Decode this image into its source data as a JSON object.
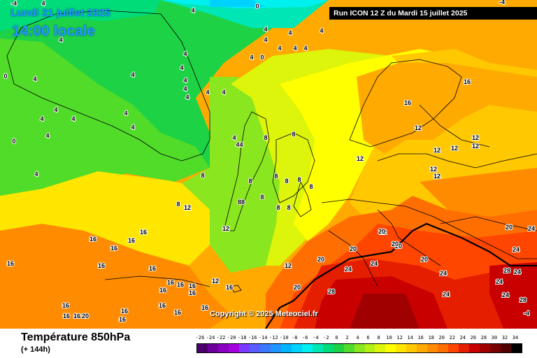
{
  "header": {
    "date": "Lundi 21 juillet 2025",
    "time": "14:00 locale",
    "run": "Run ICON 12 Z du Mardi 15 juillet 2025"
  },
  "footer": {
    "title": "Température 850hPa",
    "subtitle": "(+ 144h)",
    "copyright": "Copyright © 2025 Meteociel.fr"
  },
  "legend": {
    "labels": [
      "-26",
      "-24",
      "-22",
      "-20",
      "-18",
      "-16",
      "-14",
      "-12",
      "-10",
      "-8",
      "-6",
      "-4",
      "-2",
      "0",
      "2",
      "4",
      "6",
      "8",
      "10",
      "12",
      "14",
      "16",
      "18",
      "20",
      "22",
      "24",
      "26",
      "28",
      "30",
      "32",
      "34"
    ],
    "colors": [
      "#4b006e",
      "#6b009b",
      "#8a00c0",
      "#a400e0",
      "#7a3aff",
      "#5a5aff",
      "#3a78ff",
      "#1e96ff",
      "#00b4ff",
      "#00d2ff",
      "#00f0f0",
      "#00e6b4",
      "#00dc78",
      "#1ed246",
      "#50dc28",
      "#8ae61e",
      "#b4f014",
      "#dcf50a",
      "#ffff00",
      "#ffe600",
      "#ffc800",
      "#ffaa00",
      "#ff8c00",
      "#ff6e00",
      "#ff4600",
      "#e61e00",
      "#c80000",
      "#a00000",
      "#780000",
      "#500000",
      "#000000"
    ]
  },
  "isotherm_labels": [
    {
      "text": "-4"
    },
    {
      "text": "4"
    },
    {
      "text": "4"
    },
    {
      "text": "0"
    },
    {
      "text": "4"
    },
    {
      "text": "4"
    },
    {
      "text": "4"
    },
    {
      "text": "4"
    },
    {
      "text": "4"
    },
    {
      "text": "4"
    },
    {
      "text": "4"
    },
    {
      "text": "4"
    },
    {
      "text": "4"
    },
    {
      "text": "4"
    },
    {
      "text": "4"
    },
    {
      "text": "4"
    },
    {
      "text": "4"
    },
    {
      "text": "4"
    },
    {
      "text": "4"
    },
    {
      "text": "4"
    },
    {
      "text": "4"
    },
    {
      "text": "4"
    },
    {
      "text": "0"
    },
    {
      "text": "0"
    },
    {
      "text": "4"
    },
    {
      "text": "4"
    },
    {
      "text": "4"
    },
    {
      "text": "4"
    },
    {
      "text": "4"
    },
    {
      "text": "4"
    },
    {
      "text": "4"
    },
    {
      "text": "4"
    },
    {
      "text": "4"
    },
    {
      "text": "8"
    },
    {
      "text": "8"
    },
    {
      "text": "8"
    },
    {
      "text": "8"
    },
    {
      "text": "8"
    },
    {
      "text": "8"
    },
    {
      "text": "8"
    },
    {
      "text": "8"
    },
    {
      "text": "88"
    },
    {
      "text": "8"
    },
    {
      "text": "8"
    },
    {
      "text": "8"
    },
    {
      "text": "8"
    },
    {
      "text": "12"
    },
    {
      "text": "12"
    },
    {
      "text": "12"
    },
    {
      "text": "12"
    },
    {
      "text": "12"
    },
    {
      "text": "12"
    },
    {
      "text": "12"
    },
    {
      "text": "12"
    },
    {
      "text": "12"
    },
    {
      "text": "12"
    },
    {
      "text": "12"
    },
    {
      "text": "12"
    },
    {
      "text": "12"
    },
    {
      "text": "16"
    },
    {
      "text": "16"
    },
    {
      "text": "16"
    },
    {
      "text": "16"
    },
    {
      "text": "16"
    },
    {
      "text": "16"
    },
    {
      "text": "16"
    },
    {
      "text": "16"
    },
    {
      "text": "16"
    },
    {
      "text": "16"
    },
    {
      "text": "16"
    },
    {
      "text": "16"
    },
    {
      "text": "16"
    },
    {
      "text": "16"
    },
    {
      "text": "16"
    },
    {
      "text": "16"
    },
    {
      "text": "16"
    },
    {
      "text": "16"
    },
    {
      "text": "16"
    },
    {
      "text": "16"
    },
    {
      "text": "16"
    },
    {
      "text": "16"
    },
    {
      "text": "16"
    },
    {
      "text": "20"
    },
    {
      "text": "20"
    },
    {
      "text": "20"
    },
    {
      "text": "20"
    },
    {
      "text": "20"
    },
    {
      "text": "20"
    },
    {
      "text": "20"
    },
    {
      "text": "20"
    },
    {
      "text": "20"
    },
    {
      "text": "24"
    },
    {
      "text": "24"
    },
    {
      "text": "24"
    },
    {
      "text": "24"
    },
    {
      "text": "24"
    },
    {
      "text": "24"
    },
    {
      "text": "24"
    },
    {
      "text": "24"
    },
    {
      "text": "24"
    },
    {
      "text": "28"
    },
    {
      "text": "28"
    },
    {
      "text": "28"
    },
    {
      "text": "-4"
    },
    {
      "text": "0"
    },
    {
      "text": "-4"
    },
    {
      "text": "4"
    }
  ]
}
